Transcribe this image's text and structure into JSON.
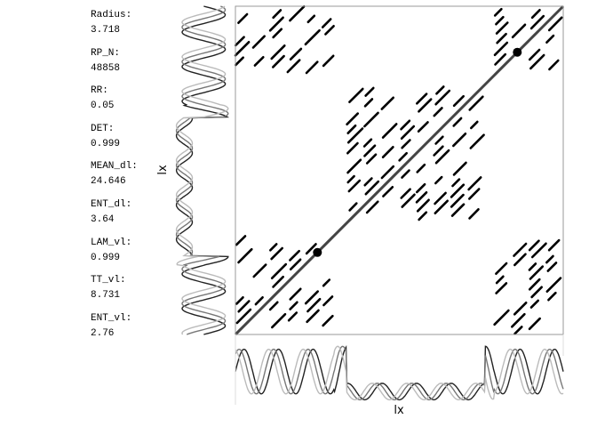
{
  "metrics": [
    {
      "label": "Radius:",
      "value": "3.718"
    },
    {
      "label": "RP_N:",
      "value": "48858"
    },
    {
      "label": "RR:",
      "value": "0.05"
    },
    {
      "label": "DET:",
      "value": "0.999"
    },
    {
      "label": "MEAN_dl:",
      "value": "24.646"
    },
    {
      "label": "ENT_dl:",
      "value": "3.64"
    },
    {
      "label": "LAM_vl:",
      "value": "0.999"
    },
    {
      "label": "TT_vl:",
      "value": "8.731"
    },
    {
      "label": "ENT_vl:",
      "value": "2.76"
    }
  ],
  "chart_data": {
    "type": "heatmap",
    "title": "",
    "xlabel": "lx",
    "ylabel": "lx",
    "grid": false,
    "legend": "none",
    "series": [
      {
        "color": "#222222"
      },
      {
        "color": "#777777"
      },
      {
        "color": "#bbbbbb"
      }
    ],
    "signal_segments": [
      {
        "x": [
          0,
          0.3
        ],
        "kind": "oscillating",
        "amplitude": "high"
      },
      {
        "x": [
          0.34,
          0.76
        ],
        "kind": "oscillating",
        "amplitude": "low",
        "level": "low"
      },
      {
        "x": [
          0.79,
          1.0
        ],
        "kind": "oscillating",
        "amplitude": "high"
      }
    ],
    "recurrence": {
      "main_diagonal": true,
      "dense_blocks": [
        {
          "x": [
            0,
            0.3
          ],
          "y": [
            0,
            0.3
          ]
        },
        {
          "x": [
            0.34,
            0.76
          ],
          "y": [
            0.34,
            0.76
          ]
        },
        {
          "x": [
            0.79,
            1.0
          ],
          "y": [
            0.79,
            1.0
          ]
        },
        {
          "x": [
            0,
            0.3
          ],
          "y": [
            0.79,
            1.0
          ]
        },
        {
          "x": [
            0.79,
            1.0
          ],
          "y": [
            0,
            0.3
          ]
        }
      ],
      "node_points": [
        0.25,
        0.86
      ]
    }
  }
}
